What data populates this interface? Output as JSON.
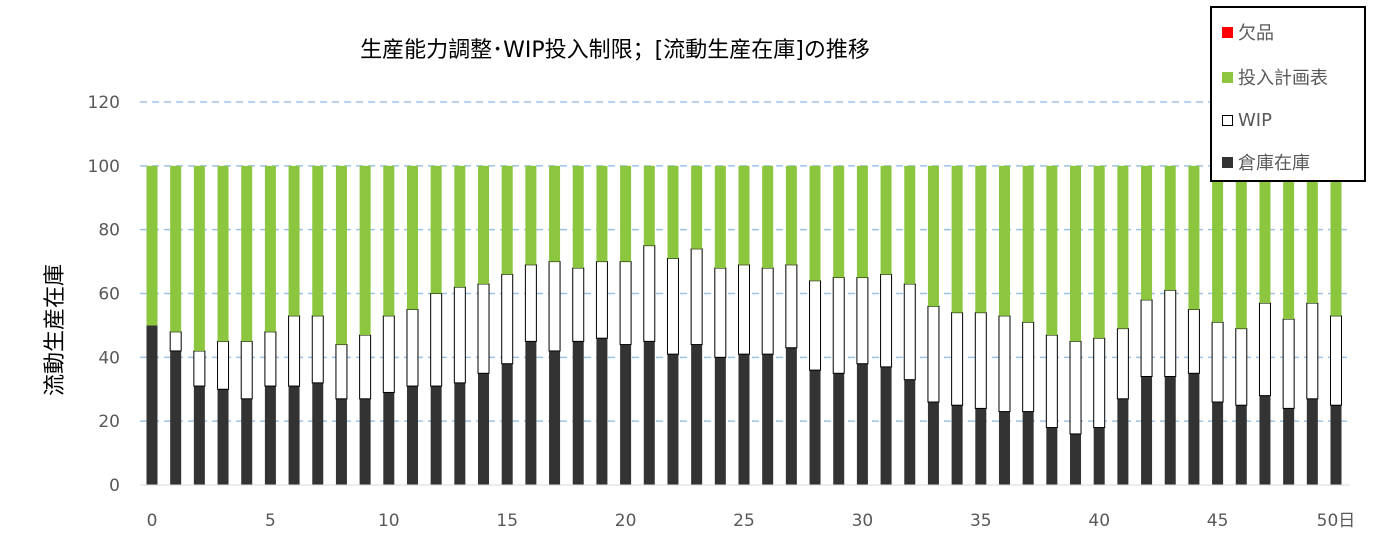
{
  "chart_data": {
    "type": "bar",
    "stacked": true,
    "title": "生産能力調整･WIP投入制限；[流動生産在庫]の推移",
    "ylabel": "流動生産在庫",
    "xlabel": "",
    "x_tick_labels": [
      "0",
      "5",
      "10",
      "15",
      "20",
      "25",
      "30",
      "35",
      "40",
      "45",
      "50日"
    ],
    "y_tick_labels": [
      "0",
      "20",
      "40",
      "60",
      "80",
      "100",
      "120"
    ],
    "ylim": [
      0,
      120
    ],
    "y_gridlines": [
      20,
      40,
      60,
      80,
      100,
      120
    ],
    "categories": [
      0,
      1,
      2,
      3,
      4,
      5,
      6,
      7,
      8,
      9,
      10,
      11,
      12,
      13,
      14,
      15,
      16,
      17,
      18,
      19,
      20,
      21,
      22,
      23,
      24,
      25,
      26,
      27,
      28,
      29,
      30,
      31,
      32,
      33,
      34,
      35,
      36,
      37,
      38,
      39,
      40,
      41,
      42,
      43,
      44,
      45,
      46,
      47,
      48,
      49,
      50
    ],
    "series": [
      {
        "name": "倉庫在庫",
        "color": "#333333",
        "values": [
          50,
          42,
          31,
          30,
          27,
          31,
          31,
          32,
          27,
          27,
          29,
          31,
          31,
          32,
          35,
          38,
          45,
          42,
          45,
          46,
          44,
          45,
          41,
          44,
          40,
          41,
          41,
          43,
          36,
          35,
          38,
          37,
          33,
          26,
          25,
          24,
          23,
          23,
          18,
          16,
          18,
          27,
          34,
          34,
          35,
          26,
          25,
          28,
          24,
          27,
          25
        ]
      },
      {
        "name": "WIP",
        "color": "#ffffff",
        "values": [
          0,
          6,
          11,
          15,
          18,
          17,
          22,
          21,
          17,
          20,
          24,
          24,
          29,
          30,
          28,
          28,
          24,
          28,
          23,
          24,
          26,
          30,
          30,
          30,
          28,
          28,
          27,
          26,
          28,
          30,
          27,
          29,
          30,
          30,
          29,
          30,
          30,
          28,
          29,
          29,
          28,
          22,
          24,
          27,
          20,
          25,
          24,
          29,
          28,
          30,
          28
        ]
      },
      {
        "name": "投入計画表",
        "color": "#8cc63f",
        "values": [
          50,
          52,
          58,
          55,
          55,
          52,
          47,
          47,
          56,
          53,
          47,
          45,
          40,
          38,
          37,
          34,
          31,
          30,
          32,
          30,
          30,
          25,
          29,
          26,
          32,
          31,
          32,
          31,
          36,
          35,
          35,
          34,
          37,
          44,
          46,
          46,
          47,
          49,
          53,
          55,
          54,
          51,
          42,
          39,
          45,
          49,
          51,
          43,
          48,
          43,
          47
        ]
      },
      {
        "name": "欠品",
        "color": "#ff0000",
        "values": [
          0,
          0,
          0,
          0,
          0,
          0,
          0,
          0,
          0,
          0,
          0,
          0,
          0,
          0,
          0,
          0,
          0,
          0,
          0,
          0,
          0,
          0,
          0,
          0,
          0,
          0,
          0,
          0,
          0,
          0,
          0,
          0,
          0,
          0,
          0,
          0,
          0,
          0,
          0,
          0,
          0,
          0,
          0,
          0,
          0,
          0,
          0,
          0,
          0,
          0,
          0
        ]
      }
    ],
    "legend": {
      "position": "top-right",
      "entries": [
        "欠品",
        "投入計画表",
        "WIP",
        "倉庫在庫"
      ]
    }
  }
}
